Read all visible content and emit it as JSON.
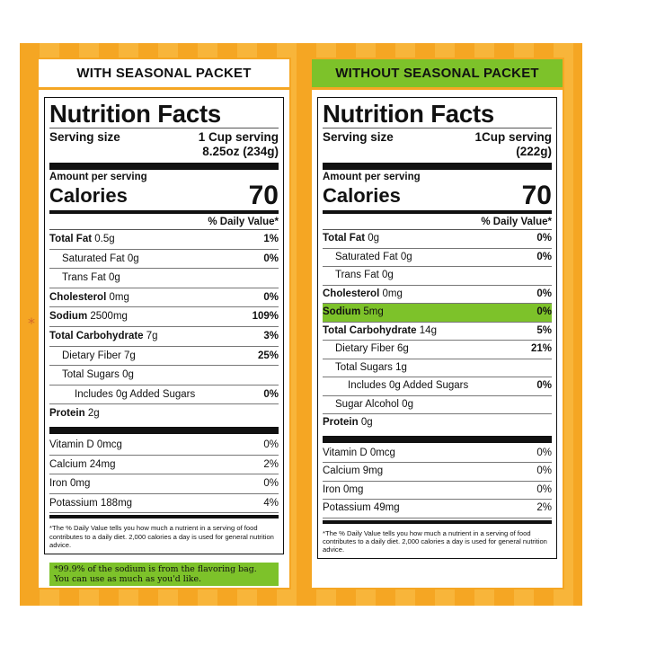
{
  "left": {
    "header": "WITH SEASONAL PACKET",
    "title": "Nutrition Facts",
    "serving_label": "Serving size",
    "serving_value_1": "1 Cup serving",
    "serving_value_2": "8.25oz (234g)",
    "amount_per_serving": "Amount per serving",
    "calories_label": "Calories",
    "calories_value": "70",
    "dv_header": "% Daily Value*",
    "rows": [
      {
        "name": "Total Fat",
        "amount": "0.5g",
        "dv": "1%"
      },
      {
        "name": "Saturated Fat",
        "amount": "0g",
        "dv": "0%"
      },
      {
        "name": "Trans Fat",
        "amount": "0g",
        "dv": ""
      },
      {
        "name": "Cholesterol",
        "amount": "0mg",
        "dv": "0%"
      },
      {
        "name": "Sodium",
        "amount": "2500mg",
        "dv": "109%"
      },
      {
        "name": "Total Carbohydrate",
        "amount": "7g",
        "dv": "3%"
      },
      {
        "name": "Dietary Fiber",
        "amount": "7g",
        "dv": "25%"
      },
      {
        "name": "Total Sugars",
        "amount": "0g",
        "dv": ""
      },
      {
        "name": "Includes 0g Added Sugars",
        "amount": "",
        "dv": "0%"
      },
      {
        "name": "Protein",
        "amount": "2g",
        "dv": ""
      }
    ],
    "vitamins": [
      {
        "name": "Vitamin D 0mcg",
        "dv": "0%"
      },
      {
        "name": "Calcium 24mg",
        "dv": "2%"
      },
      {
        "name": "Iron 0mg",
        "dv": "0%"
      },
      {
        "name": "Potassium 188mg",
        "dv": "4%"
      }
    ],
    "footnote": "*The % Daily Value tells you how much a nutrient in a serving of food contributes to a daily diet. 2,000 calories a day is used for general nutrition advice.",
    "note_line1": "*99.9% of the sodium is from the flavoring bag.",
    "note_line2": "You can use as much as you'd like.",
    "asterisk": "*"
  },
  "right": {
    "header": "WITHOUT SEASONAL PACKET",
    "title": "Nutrition Facts",
    "serving_label": "Serving size",
    "serving_value_1": "1Cup serving",
    "serving_value_2": "(222g)",
    "amount_per_serving": "Amount per serving",
    "calories_label": "Calories",
    "calories_value": "70",
    "dv_header": "% Daily Value*",
    "rows": [
      {
        "name": "Total Fat",
        "amount": "0g",
        "dv": "0%"
      },
      {
        "name": "Saturated Fat",
        "amount": "0g",
        "dv": "0%"
      },
      {
        "name": "Trans Fat",
        "amount": "0g",
        "dv": ""
      },
      {
        "name": "Cholesterol",
        "amount": "0mg",
        "dv": "0%"
      },
      {
        "name": "Sodium",
        "amount": "5mg",
        "dv": "0%"
      },
      {
        "name": "Total Carbohydrate",
        "amount": "14g",
        "dv": "5%"
      },
      {
        "name": "Dietary Fiber",
        "amount": "6g",
        "dv": "21%"
      },
      {
        "name": "Total Sugars",
        "amount": "1g",
        "dv": ""
      },
      {
        "name": "Includes 0g Added Sugars",
        "amount": "",
        "dv": "0%"
      },
      {
        "name": "Sugar Alcohol",
        "amount": "0g",
        "dv": ""
      },
      {
        "name": "Protein",
        "amount": "0g",
        "dv": ""
      }
    ],
    "vitamins": [
      {
        "name": "Vitamin D 0mcg",
        "dv": "0%"
      },
      {
        "name": "Calcium 9mg",
        "dv": "0%"
      },
      {
        "name": "Iron 0mg",
        "dv": "0%"
      },
      {
        "name": "Potassium 49mg",
        "dv": "2%"
      }
    ],
    "footnote": "*The % Daily Value tells you how much a nutrient in a serving of food contributes to a daily diet. 2,000 calories a day is used for general nutrition advice."
  },
  "colors": {
    "orange": "#f5a623",
    "green": "#7dc22a"
  }
}
